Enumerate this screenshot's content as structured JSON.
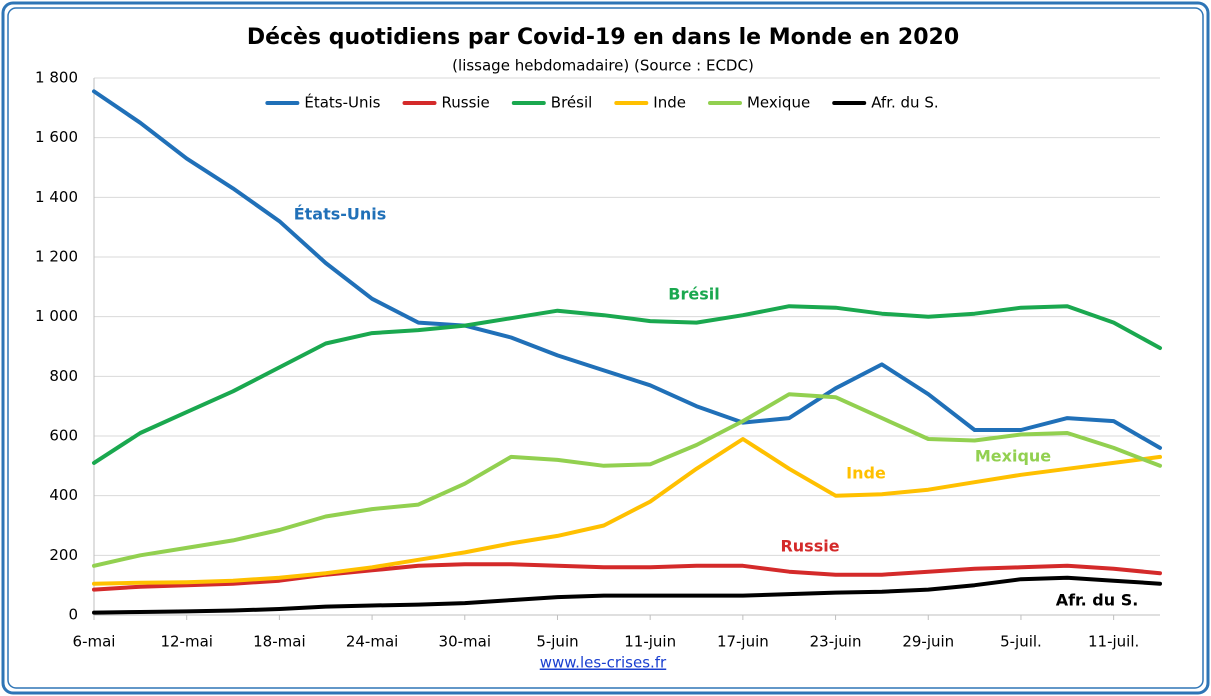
{
  "chart_data": {
    "type": "line",
    "title": "Décès quotidiens par Covid-19 en dans le Monde en 2020",
    "subtitle": "(lissage hebdomadaire) (Source : ECDC)",
    "source": "www.les-crises.fr",
    "categories": [
      "6-mai",
      null,
      "12-mai",
      null,
      "18-mai",
      null,
      "24-mai",
      null,
      "30-mai",
      null,
      "5-juin",
      null,
      "11-juin",
      null,
      "17-juin",
      null,
      "23-juin",
      null,
      "29-juin",
      null,
      "5-juil.",
      null,
      "11-juil.",
      null
    ],
    "series": [
      {
        "name": "États-Unis",
        "color": "#2070b8",
        "values": [
          1755,
          1650,
          1530,
          1430,
          1320,
          1180,
          1060,
          980,
          970,
          930,
          870,
          820,
          770,
          700,
          645,
          660,
          760,
          840,
          740,
          620,
          620,
          660,
          650,
          560
        ]
      },
      {
        "name": "Russie",
        "color": "#d42a2a",
        "values": [
          85,
          95,
          100,
          105,
          115,
          135,
          150,
          165,
          170,
          170,
          165,
          160,
          160,
          165,
          165,
          145,
          135,
          135,
          145,
          155,
          160,
          165,
          155,
          140
        ]
      },
      {
        "name": "Brésil",
        "color": "#1aa84f",
        "values": [
          510,
          610,
          680,
          750,
          830,
          910,
          945,
          955,
          970,
          995,
          1020,
          1005,
          985,
          980,
          1005,
          1035,
          1030,
          1010,
          1000,
          1010,
          1030,
          1035,
          980,
          895
        ]
      },
      {
        "name": "Inde",
        "color": "#ffc000",
        "values": [
          105,
          108,
          110,
          115,
          125,
          140,
          160,
          185,
          210,
          240,
          265,
          300,
          380,
          490,
          590,
          490,
          400,
          405,
          420,
          445,
          470,
          490,
          510,
          530
        ]
      },
      {
        "name": "Mexique",
        "color": "#92d050",
        "values": [
          165,
          200,
          225,
          250,
          285,
          330,
          355,
          370,
          440,
          530,
          520,
          500,
          505,
          570,
          650,
          740,
          730,
          660,
          590,
          585,
          605,
          610,
          560,
          500
        ]
      },
      {
        "name": "Afr. du S.",
        "color": "#000000",
        "values": [
          8,
          10,
          12,
          15,
          20,
          28,
          32,
          35,
          40,
          50,
          60,
          65,
          65,
          65,
          65,
          70,
          75,
          78,
          85,
          100,
          120,
          125,
          115,
          105
        ]
      }
    ],
    "annotations": [
      "États-Unis",
      "Russie",
      "Brésil",
      "Inde",
      "Mexique",
      "Afr. du S."
    ],
    "ylim": [
      0,
      1800
    ],
    "yticks": [
      0,
      200,
      400,
      600,
      800,
      {
        "value": 1000,
        "label": "1 000"
      },
      {
        "value": 1200,
        "label": "1 200"
      },
      {
        "value": 1400,
        "label": "1 400"
      },
      {
        "value": 1600,
        "label": "1 600"
      },
      {
        "value": 1800,
        "label": "1 800"
      }
    ],
    "grid": true,
    "legend": "top"
  }
}
